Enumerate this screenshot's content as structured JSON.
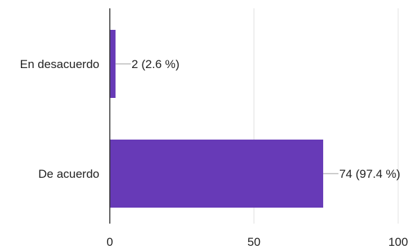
{
  "chart_data": {
    "type": "bar",
    "orientation": "horizontal",
    "categories": [
      "En desacuerdo",
      "De acuerdo"
    ],
    "values": [
      2,
      74
    ],
    "data_labels": [
      "2 (2.6 %)",
      "74 (97.4 %)"
    ],
    "xlim": [
      0,
      100
    ],
    "xticks": [
      0,
      50,
      100
    ],
    "xtick_labels": [
      "0",
      "50",
      "100"
    ],
    "grid": true,
    "bar_color": "#673ab7",
    "grid_color": "#e0e0e0",
    "axis_color": "#333333",
    "title": "",
    "xlabel": "",
    "ylabel": ""
  }
}
